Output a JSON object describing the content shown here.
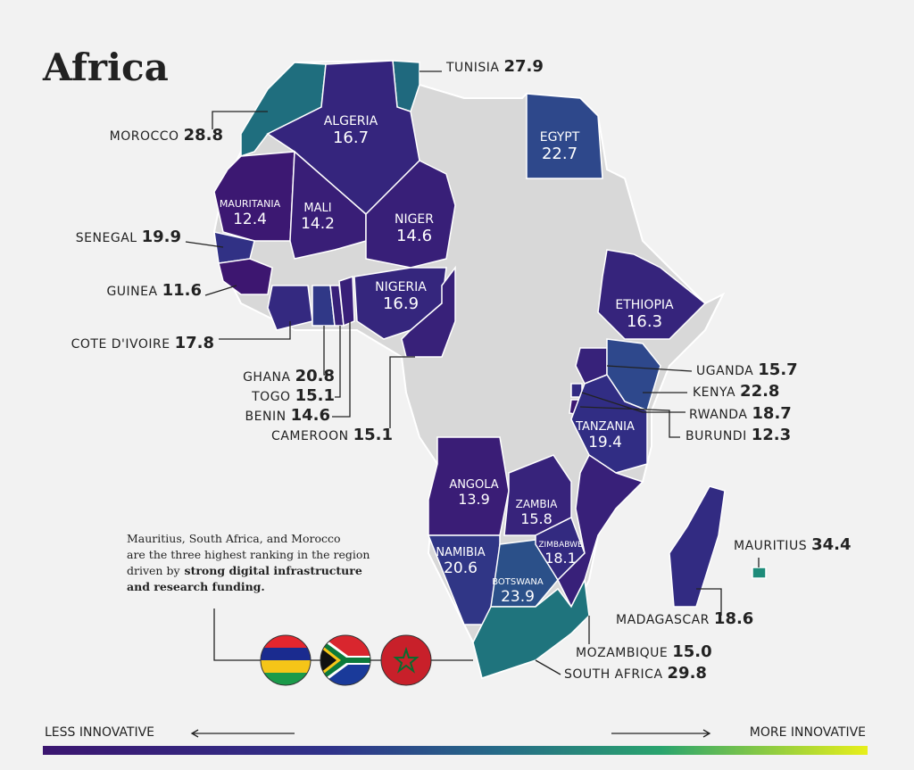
{
  "title": "Africa",
  "countries": [
    {
      "name": "TUNISIA",
      "score": 27.9
    },
    {
      "name": "MOROCCO",
      "score": 28.8
    },
    {
      "name": "ALGERIA",
      "score": 16.7
    },
    {
      "name": "EGYPT",
      "score": 22.7
    },
    {
      "name": "MAURITANIA",
      "score": 12.4
    },
    {
      "name": "MALI",
      "score": 14.2
    },
    {
      "name": "NIGER",
      "score": 14.6
    },
    {
      "name": "SENEGAL",
      "score": 19.9
    },
    {
      "name": "GUINEA",
      "score": 11.6
    },
    {
      "name": "COTE D'IVOIRE",
      "score": 17.8
    },
    {
      "name": "GHANA",
      "score": 20.8
    },
    {
      "name": "TOGO",
      "score": 15.1
    },
    {
      "name": "BENIN",
      "score": 14.6
    },
    {
      "name": "NIGERIA",
      "score": 16.9
    },
    {
      "name": "CAMEROON",
      "score": 15.1
    },
    {
      "name": "ETHIOPIA",
      "score": 16.3
    },
    {
      "name": "UGANDA",
      "score": 15.7
    },
    {
      "name": "KENYA",
      "score": 22.8
    },
    {
      "name": "RWANDA",
      "score": 18.7
    },
    {
      "name": "BURUNDI",
      "score": 12.3
    },
    {
      "name": "TANZANIA",
      "score": 19.4
    },
    {
      "name": "ANGOLA",
      "score": 13.9
    },
    {
      "name": "ZAMBIA",
      "score": 15.8
    },
    {
      "name": "NAMIBIA",
      "score": 20.6
    },
    {
      "name": "BOTSWANA",
      "score": 23.9
    },
    {
      "name": "ZIMBABWE",
      "score": 18.1
    },
    {
      "name": "MOZAMBIQUE",
      "score": 15,
      "score_label": "15.0"
    },
    {
      "name": "SOUTH AFRICA",
      "score": 29.8
    },
    {
      "name": "MADAGASCAR",
      "score": 18.6
    },
    {
      "name": "MAURITIUS",
      "score": 34.4
    }
  ],
  "note": [
    {
      "text": "Mauritius, South Africa, and Morocco"
    },
    {
      "text": "are the three highest ranking in the region"
    },
    {
      "text": "driven by",
      "bold": "strong digital infrastructure"
    },
    {
      "bold": "and  research funding."
    }
  ],
  "legend": {
    "low": "LESS INNOVATIVE",
    "high": "MORE INNOVATIVE"
  }
}
